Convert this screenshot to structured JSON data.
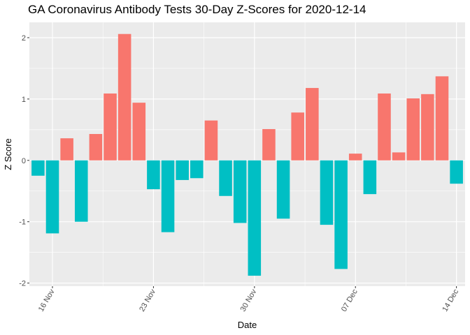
{
  "chart_data": {
    "type": "bar",
    "title": "GA Coronavirus Antibody Tests 30-Day Z-Scores for 2020-12-14",
    "xlabel": "Date",
    "ylabel": "Z Score",
    "x": [
      "2020-11-15",
      "2020-11-16",
      "2020-11-17",
      "2020-11-18",
      "2020-11-19",
      "2020-11-20",
      "2020-11-21",
      "2020-11-22",
      "2020-11-23",
      "2020-11-24",
      "2020-11-25",
      "2020-11-26",
      "2020-11-27",
      "2020-11-28",
      "2020-11-29",
      "2020-11-30",
      "2020-12-01",
      "2020-12-02",
      "2020-12-03",
      "2020-12-04",
      "2020-12-05",
      "2020-12-06",
      "2020-12-07",
      "2020-12-08",
      "2020-12-09",
      "2020-12-10",
      "2020-12-11",
      "2020-12-12",
      "2020-12-13",
      "2020-12-14"
    ],
    "values": [
      -0.25,
      -1.19,
      0.36,
      -1.0,
      0.43,
      1.09,
      2.06,
      0.94,
      -0.47,
      -1.17,
      -0.32,
      -0.29,
      0.65,
      -0.58,
      -1.02,
      -1.88,
      0.51,
      -0.95,
      0.78,
      1.18,
      -1.05,
      -1.77,
      0.11,
      -0.55,
      1.09,
      0.13,
      1.01,
      1.08,
      1.37,
      -0.38
    ],
    "fill_positive": "#F8766D",
    "fill_negative": "#00BFC4",
    "ylim": [
      -2.05,
      2.25
    ],
    "yticks": [
      -2,
      -1,
      0,
      1,
      2
    ],
    "xticks": [
      {
        "date": "2020-11-16",
        "label": "16 Nov"
      },
      {
        "date": "2020-11-23",
        "label": "23 Nov"
      },
      {
        "date": "2020-11-30",
        "label": "30 Nov"
      },
      {
        "date": "2020-12-07",
        "label": "07 Dec"
      },
      {
        "date": "2020-12-14",
        "label": "14 Dec"
      }
    ],
    "legend": "none",
    "grid": true,
    "panel_background": "#EBEBEB",
    "grid_color": "#FFFFFF"
  }
}
